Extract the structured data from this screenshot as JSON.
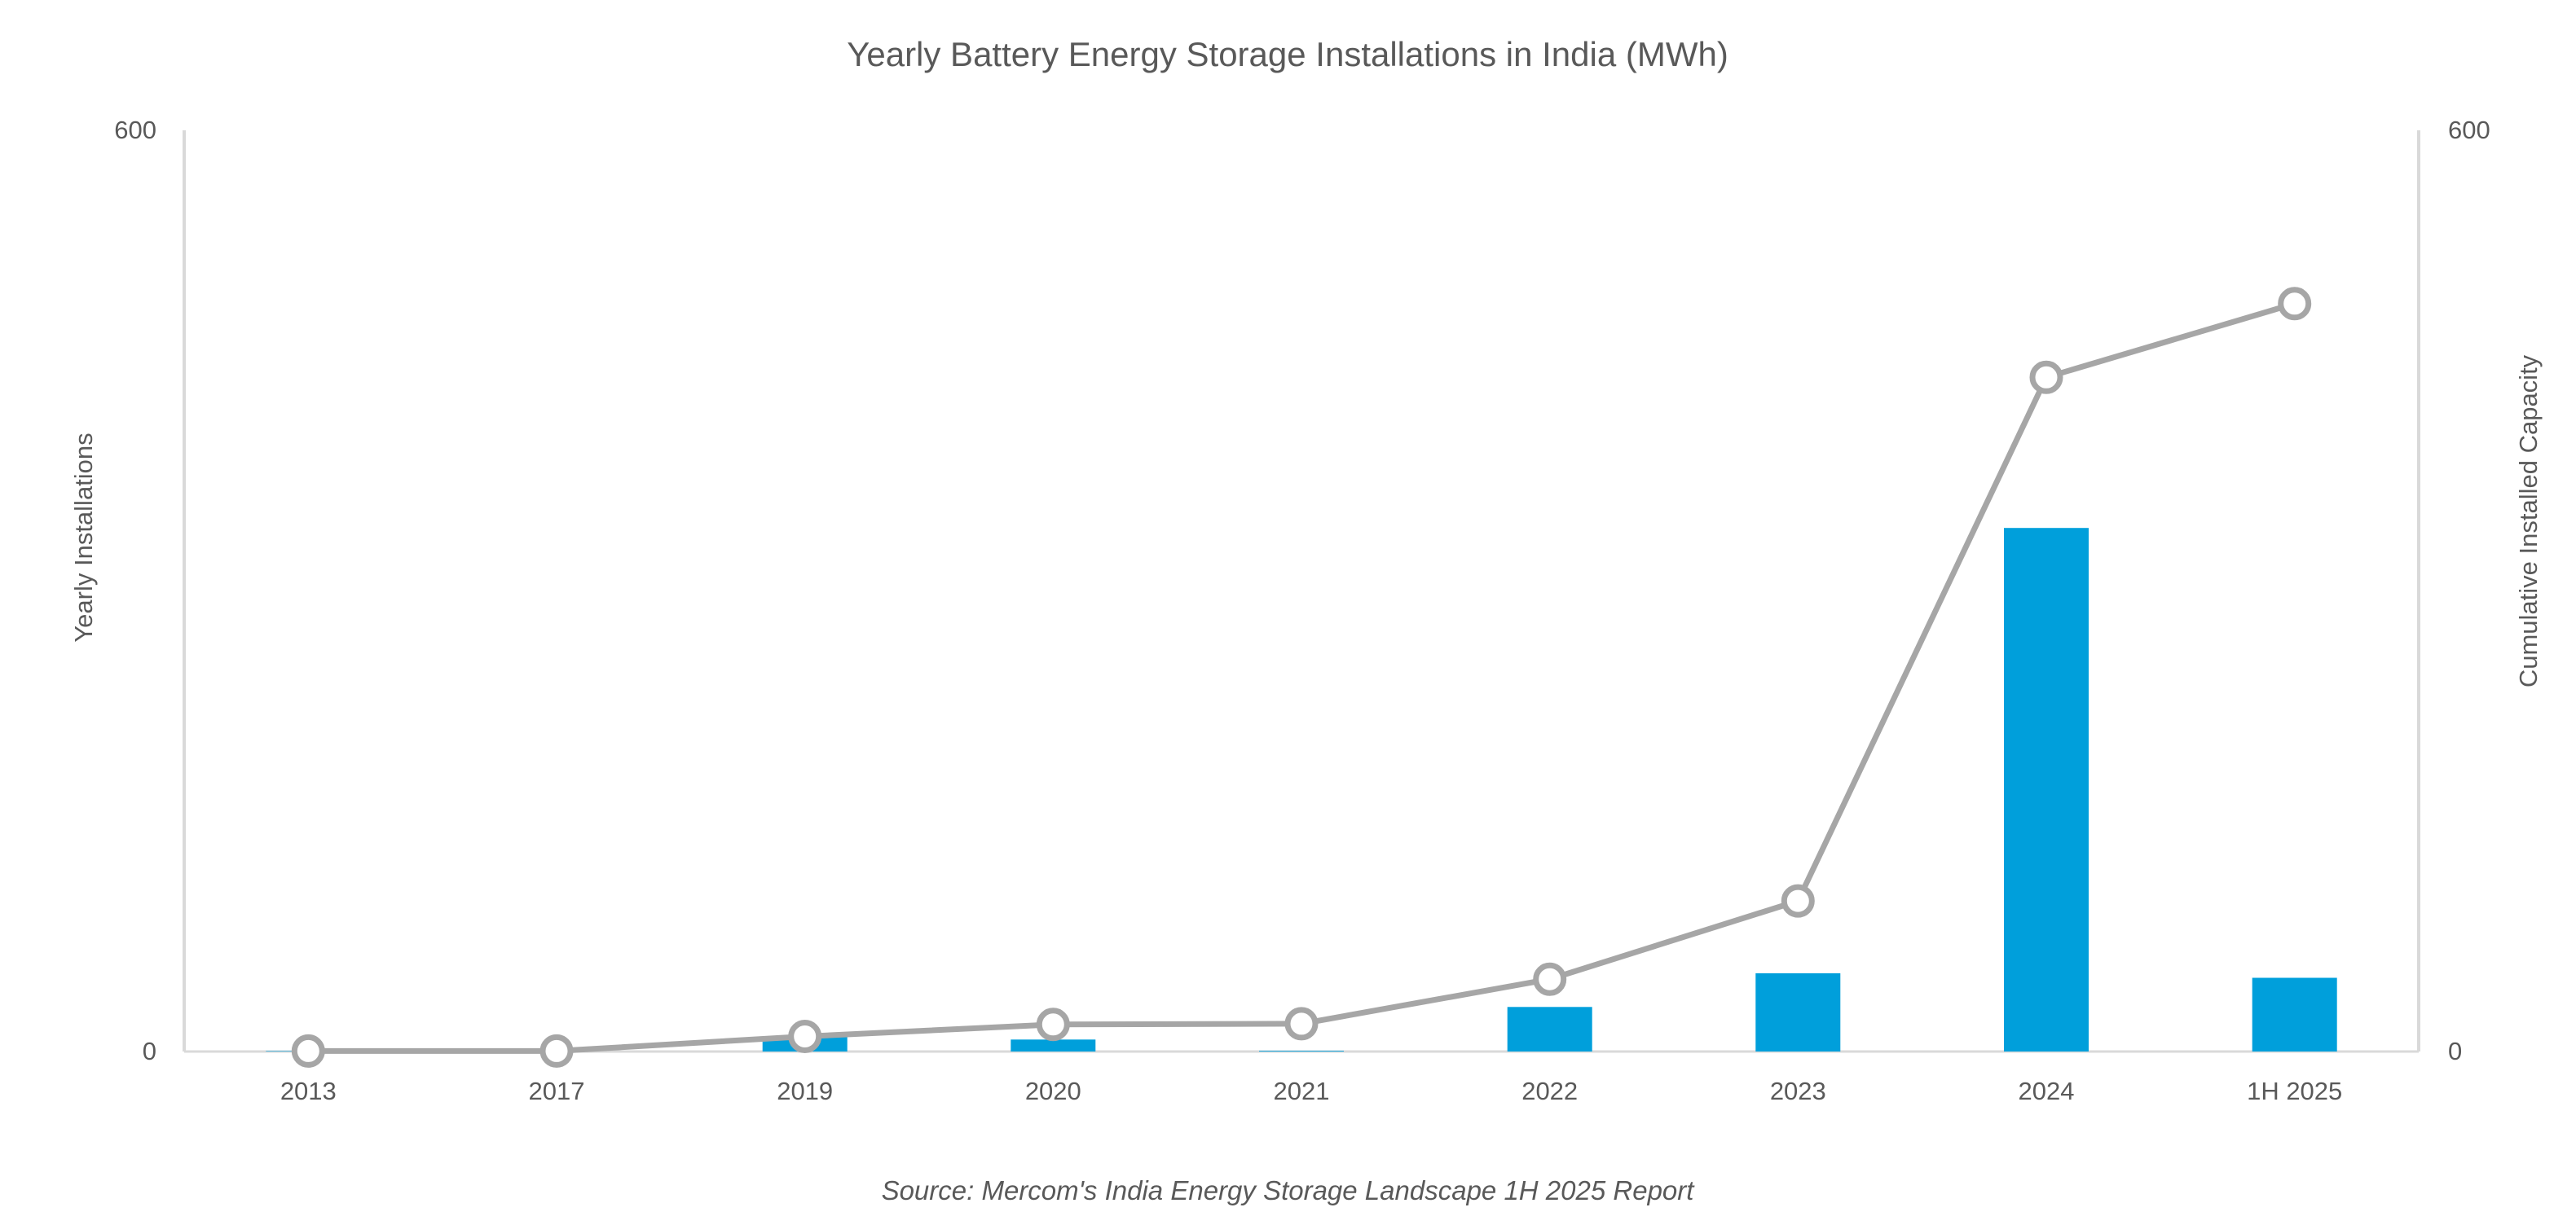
{
  "chart_data": {
    "type": "bar",
    "title": "Yearly Battery Energy Storage Installations in India (MWh)",
    "source": "Source: Mercom's India Energy Storage Landscape 1H 2025 Report",
    "categories": [
      "2013",
      "2017",
      "2019",
      "2020",
      "2021",
      "2022",
      "2023",
      "2024",
      "1H 2025"
    ],
    "ylabel": "Yearly Installations",
    "y2label": "Cumulative Installed  Capacity",
    "ylim": [
      0,
      600
    ],
    "y2lim": [
      0,
      600
    ],
    "y_ticks": [
      "0",
      "600"
    ],
    "y2_ticks": [
      "0",
      "600"
    ],
    "series": [
      {
        "name": "Yearly Installations",
        "type": "bar",
        "axis": "left",
        "values": [
          0.3,
          0,
          9.5,
          7.8,
          0.5,
          29,
          51,
          341,
          48
        ],
        "color": "#009FDB"
      },
      {
        "name": "Cumulative Installed Capacity",
        "type": "line",
        "axis": "right",
        "values": [
          0.3,
          0.3,
          9.8,
          17.6,
          18.1,
          47.1,
          98.1,
          439.1,
          487.1
        ],
        "color": "#A6A6A6"
      }
    ]
  }
}
